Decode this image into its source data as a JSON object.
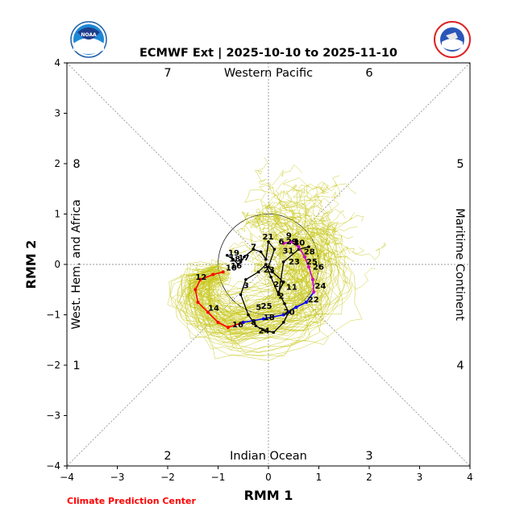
{
  "chart_data": {
    "type": "line",
    "title": "ECMWF Ext | 2025-10-10 to 2025-11-10",
    "xlabel": "RMM 1",
    "ylabel": "RMM 2",
    "xlim": [
      -4,
      4
    ],
    "ylim": [
      -4,
      4
    ],
    "xticks": [
      -4,
      -3,
      -2,
      -1,
      0,
      1,
      2,
      3,
      4
    ],
    "yticks": [
      -4,
      -3,
      -2,
      -1,
      0,
      1,
      2,
      3,
      4
    ],
    "tick_labels": [
      "−4",
      "−3",
      "−2",
      "−1",
      "0",
      "1",
      "2",
      "3",
      "4"
    ],
    "grid": false,
    "unit_circle_radius": 1,
    "phase_numbers": [
      "1",
      "2",
      "3",
      "4",
      "5",
      "6",
      "7",
      "8"
    ],
    "regions": {
      "top": "Western Pacific",
      "bottom": "Indian Ocean",
      "left": "West. Hem. and Africa",
      "right": "Maritime Continent"
    },
    "colors": {
      "observed": "#000000",
      "ensemble": "#c8c81e",
      "segment_red": "#ff0000",
      "segment_blue": "#0000ff",
      "segment_magenta": "#cc00cc"
    },
    "observed": {
      "x": [
        -0.82,
        -0.7,
        -0.6,
        -0.55,
        -0.48,
        -0.3,
        -0.15,
        -0.05,
        0.0,
        0.12,
        0.0,
        0.08,
        0.3,
        0.2,
        0.32,
        0.4,
        0.3,
        0.1,
        -0.1,
        -0.25,
        -0.4,
        -0.55,
        -0.45,
        -0.2,
        -0.05,
        0.05,
        0.2,
        0.3,
        0.6,
        0.8
      ],
      "y": [
        0.18,
        0.1,
        0.0,
        0.05,
        0.15,
        0.3,
        0.25,
        0.1,
        0.45,
        0.3,
        -0.05,
        -0.15,
        -0.35,
        -0.55,
        -0.78,
        -0.95,
        -1.15,
        -1.35,
        -1.3,
        -1.22,
        -1.0,
        -0.6,
        -0.3,
        -0.15,
        0.0,
        -0.25,
        -0.6,
        0.05,
        0.3,
        0.35
      ],
      "labels": [
        {
          "text": "19",
          "x": -0.8,
          "y": 0.18
        },
        {
          "text": "18",
          "x": -0.78,
          "y": 0.06
        },
        {
          "text": "17",
          "x": -0.6,
          "y": 0.08
        },
        {
          "text": "16",
          "x": -0.75,
          "y": -0.08
        },
        {
          "text": "7",
          "x": -0.35,
          "y": 0.3
        },
        {
          "text": "21",
          "x": -0.12,
          "y": 0.5
        },
        {
          "text": "31",
          "x": 0.28,
          "y": 0.22
        },
        {
          "text": "23",
          "x": -0.1,
          "y": -0.16
        },
        {
          "text": "3",
          "x": -0.5,
          "y": -0.47
        },
        {
          "text": "2",
          "x": 0.2,
          "y": -0.68
        },
        {
          "text": "8",
          "x": -0.35,
          "y": -1.2
        },
        {
          "text": "24",
          "x": -0.2,
          "y": -1.37
        }
      ]
    },
    "forecast": {
      "x": [
        -0.9,
        -1.1,
        -1.35,
        -1.45,
        -1.4,
        -1.2,
        -1.0,
        -0.8,
        -0.5,
        -0.1,
        0.3,
        0.55,
        0.75,
        0.9,
        0.88,
        0.8,
        0.72,
        0.6,
        0.45,
        0.3
      ],
      "y": [
        -0.15,
        -0.2,
        -0.3,
        -0.5,
        -0.75,
        -0.95,
        -1.15,
        -1.25,
        -1.15,
        -1.08,
        -1.0,
        -0.85,
        -0.75,
        -0.55,
        -0.3,
        -0.05,
        0.15,
        0.35,
        0.45,
        0.42
      ],
      "labels": [
        {
          "text": "10",
          "x": -0.85,
          "y": -0.12
        },
        {
          "text": "12",
          "x": -1.45,
          "y": -0.3
        },
        {
          "text": "14",
          "x": -1.2,
          "y": -0.92
        },
        {
          "text": "16",
          "x": -0.72,
          "y": -1.25
        },
        {
          "text": "18",
          "x": -0.1,
          "y": -1.1
        },
        {
          "text": "20",
          "x": 0.3,
          "y": -1.0
        },
        {
          "text": "22",
          "x": 0.78,
          "y": -0.75
        },
        {
          "text": "24",
          "x": 0.92,
          "y": -0.48
        },
        {
          "text": "26",
          "x": 0.88,
          "y": -0.1
        },
        {
          "text": "28",
          "x": 0.7,
          "y": 0.2
        },
        {
          "text": "30",
          "x": 0.5,
          "y": 0.38
        }
      ],
      "segment_colors": [
        "red",
        "red",
        "red",
        "red",
        "red",
        "red",
        "red",
        "red",
        "blue",
        "blue",
        "blue",
        "blue",
        "blue",
        "magenta",
        "magenta",
        "magenta",
        "magenta",
        "magenta",
        "magenta"
      ]
    },
    "extra_labels": [
      {
        "text": "5",
        "x": -0.25,
        "y": -0.9
      },
      {
        "text": "25",
        "x": -0.15,
        "y": -0.88
      },
      {
        "text": "27",
        "x": 0.1,
        "y": -0.45
      },
      {
        "text": "11",
        "x": 0.35,
        "y": -0.5
      },
      {
        "text": "23",
        "x": 0.4,
        "y": 0.0
      },
      {
        "text": "25",
        "x": 0.75,
        "y": 0.0
      },
      {
        "text": "9",
        "x": 0.35,
        "y": 0.52
      },
      {
        "text": "6",
        "x": 0.2,
        "y": 0.4
      },
      {
        "text": "29",
        "x": 0.35,
        "y": 0.4
      },
      {
        "text": "1",
        "x": 0.5,
        "y": 0.4
      }
    ],
    "ensemble_member_count": 100
  },
  "footer": {
    "credit": "Climate Prediction Center"
  },
  "logos": {
    "left": "noaa-logo",
    "left_text": "NOAA",
    "right": "national-weather-service-logo"
  }
}
